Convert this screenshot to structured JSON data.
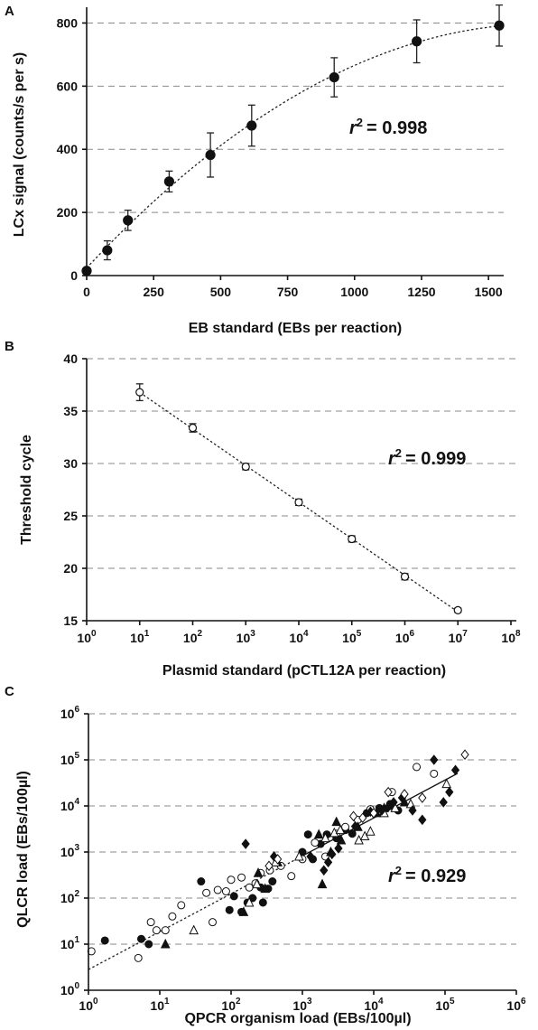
{
  "chart_data": [
    {
      "panel": "A",
      "type": "scatter",
      "xlabel": "EB standard (EBs per reaction)",
      "ylabel": "LCx signal (counts/s per s)",
      "xlim": [
        0,
        1550
      ],
      "ylim": [
        0,
        850
      ],
      "x_ticks": [
        0,
        250,
        500,
        750,
        1000,
        1250,
        1500
      ],
      "y_ticks": [
        0,
        200,
        400,
        600,
        800
      ],
      "grid_y": [
        200,
        400,
        600,
        800
      ],
      "marker": "filled-circle",
      "x": [
        0,
        77,
        154,
        308,
        462,
        616,
        924,
        1232,
        1540
      ],
      "y": [
        15,
        80,
        175,
        298,
        382,
        475,
        628,
        742,
        792
      ],
      "yerr": [
        5,
        30,
        32,
        33,
        70,
        65,
        62,
        68,
        65
      ],
      "fit": "polynomial (dotted)",
      "r2_text": "= 0.998",
      "r2_value": 0.998
    },
    {
      "panel": "B",
      "type": "scatter",
      "xlabel": "Plasmid standard (pCTL12A per reaction)",
      "ylabel": "Threshold cycle",
      "x_scale": "log",
      "xlim_exp": [
        0,
        8
      ],
      "ylim": [
        15,
        40
      ],
      "y_ticks": [
        15,
        20,
        25,
        30,
        35,
        40
      ],
      "grid_y": [
        20,
        25,
        30,
        35,
        40
      ],
      "marker": "open-circle",
      "x": [
        10,
        100,
        1000,
        10000,
        100000,
        1000000,
        10000000
      ],
      "y": [
        36.8,
        33.4,
        29.7,
        26.3,
        22.8,
        19.2,
        16.0
      ],
      "yerr": [
        0.8,
        0.4,
        0.3,
        0.3,
        0.3,
        0.3,
        0.2
      ],
      "fit": "linear (dotted)",
      "r2_text": "= 0.999",
      "r2_value": 0.999
    },
    {
      "panel": "C",
      "type": "scatter",
      "xlabel": "QPCR organism load (EBs/100µl)",
      "ylabel": "QLCR load (EBs/100µl)",
      "x_scale": "log",
      "y_scale": "log",
      "xlim_exp": [
        0,
        6
      ],
      "ylim_exp": [
        0,
        6
      ],
      "grid_y_exp": [
        1,
        2,
        3,
        4,
        5,
        6
      ],
      "fit": "log-log linear (dotted below 1e3, solid above)",
      "r2_text": "= 0.929",
      "r2_value": 0.929,
      "series": [
        {
          "marker": "filled-circle",
          "points": [
            [
              1.7,
              12
            ],
            [
              5.5,
              13
            ],
            [
              7,
              10
            ],
            [
              38,
              230
            ],
            [
              95,
              55
            ],
            [
              110,
              110
            ],
            [
              140,
              50
            ],
            [
              170,
              80
            ],
            [
              200,
              100
            ],
            [
              260,
              170
            ],
            [
              280,
              80
            ],
            [
              330,
              160
            ],
            [
              380,
              230
            ],
            [
              1000,
              1000
            ],
            [
              1200,
              2400
            ],
            [
              1400,
              700
            ],
            [
              1800,
              1500
            ],
            [
              2200,
              2400
            ],
            [
              3000,
              2000
            ],
            [
              4000,
              3000
            ],
            [
              5000,
              2500
            ],
            [
              8000,
              7000
            ],
            [
              12000,
              9000
            ],
            [
              17000,
              11000
            ],
            [
              22000,
              8000
            ]
          ]
        },
        {
          "marker": "open-circle",
          "points": [
            [
              1.1,
              7
            ],
            [
              5,
              5
            ],
            [
              7.5,
              30
            ],
            [
              9,
              20
            ],
            [
              12,
              20
            ],
            [
              15,
              40
            ],
            [
              20,
              70
            ],
            [
              45,
              130
            ],
            [
              55,
              30
            ],
            [
              65,
              150
            ],
            [
              85,
              140
            ],
            [
              100,
              250
            ],
            [
              140,
              280
            ],
            [
              180,
              170
            ],
            [
              220,
              210
            ],
            [
              260,
              350
            ],
            [
              350,
              400
            ],
            [
              500,
              500
            ],
            [
              700,
              300
            ],
            [
              1000,
              700
            ],
            [
              1500,
              1600
            ],
            [
              2100,
              800
            ],
            [
              3000,
              2500
            ],
            [
              4000,
              3500
            ],
            [
              6000,
              5000
            ],
            [
              9000,
              8500
            ],
            [
              18000,
              20000
            ],
            [
              40000,
              70000
            ],
            [
              70000,
              50000
            ]
          ]
        },
        {
          "marker": "filled-triangle",
          "points": [
            [
              12,
              10
            ],
            [
              150,
              50
            ],
            [
              240,
              350
            ],
            [
              300,
              160
            ],
            [
              450,
              600
            ],
            [
              1700,
              2400
            ],
            [
              1900,
              200
            ],
            [
              2500,
              1000
            ],
            [
              3000,
              4500
            ],
            [
              3500,
              1800
            ],
            [
              6000,
              3500
            ],
            [
              11000,
              7000
            ],
            [
              14000,
              9000
            ],
            [
              19000,
              10000
            ],
            [
              27000,
              12000
            ]
          ]
        },
        {
          "marker": "open-triangle",
          "points": [
            [
              30,
              20
            ],
            [
              180,
              80
            ],
            [
              230,
              200
            ],
            [
              420,
              600
            ],
            [
              900,
              800
            ],
            [
              2100,
              2000
            ],
            [
              2800,
              2600
            ],
            [
              3400,
              3000
            ],
            [
              6200,
              1800
            ],
            [
              7500,
              2200
            ],
            [
              9000,
              2800
            ],
            [
              14000,
              7000
            ],
            [
              20000,
              9000
            ],
            [
              33000,
              11000
            ],
            [
              105000,
              30000
            ]
          ]
        },
        {
          "marker": "filled-diamond",
          "points": [
            [
              160,
              1500
            ],
            [
              400,
              800
            ],
            [
              1300,
              800
            ],
            [
              2000,
              400
            ],
            [
              2300,
              600
            ],
            [
              2600,
              900
            ],
            [
              3200,
              1200
            ],
            [
              5500,
              3600
            ],
            [
              9000,
              7500
            ],
            [
              13000,
              8000
            ],
            [
              16000,
              9500
            ],
            [
              19000,
              12000
            ],
            [
              25000,
              15000
            ],
            [
              35000,
              8000
            ],
            [
              48000,
              5000
            ],
            [
              70000,
              100000
            ],
            [
              95000,
              12000
            ],
            [
              115000,
              20000
            ],
            [
              140000,
              60000
            ]
          ]
        },
        {
          "marker": "open-diamond",
          "points": [
            [
              340,
              500
            ],
            [
              450,
              700
            ],
            [
              5200,
              6000
            ],
            [
              7000,
              5500
            ],
            [
              10000,
              7000
            ],
            [
              16000,
              20000
            ],
            [
              27000,
              18000
            ],
            [
              48000,
              15000
            ],
            [
              190000,
              130000
            ]
          ]
        }
      ]
    }
  ],
  "panel_labels": {
    "a": "A",
    "b": "B",
    "c": "C"
  },
  "axis_titles": {
    "a_x": "EB standard (EBs per reaction)",
    "a_y": "LCx signal (counts/s per s)",
    "b_x": "Plasmid standard (pCTL12A per reaction)",
    "b_y": "Threshold cycle",
    "c_x": "QPCR organism load (EBs/100µl)",
    "c_y": "QLCR load (EBs/100µl)"
  },
  "r2": {
    "a_val": "= 0.998",
    "b_val": "= 0.999",
    "c_val": "= 0.929"
  }
}
